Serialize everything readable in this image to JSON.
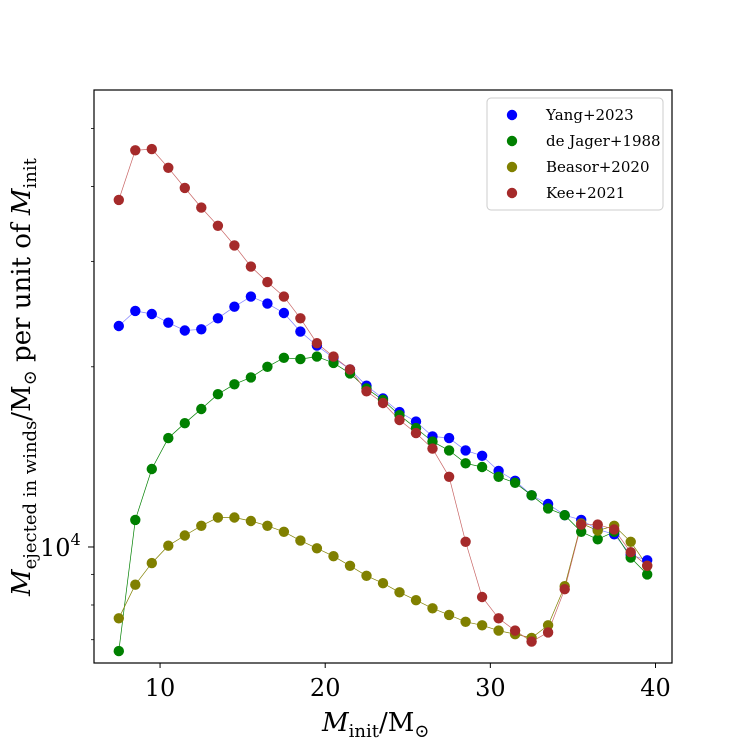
{
  "chart_data": {
    "type": "scatter",
    "title": "",
    "xlabel_main": "M",
    "xlabel_sub": "init",
    "xlabel_unit": "/M",
    "xlabel_unit_sym": "⊙",
    "ylabel_main": "M",
    "ylabel_sub": "ejected in winds",
    "ylabel_mid": "/M",
    "ylabel_sym": "⊙",
    "ylabel_text": " per unit of ",
    "ylabel_end": "M",
    "ylabel_end_sub": "init",
    "yscale": "log",
    "xlim": [
      6,
      41
    ],
    "ylim": [
      6400,
      58000
    ],
    "xticks": [
      10,
      20,
      30,
      40
    ],
    "xtick_labels": [
      "10",
      "20",
      "30",
      "40"
    ],
    "ytick_label_base": "10",
    "ytick_label_exp": "4",
    "ytick_value": 10000,
    "legend_position": "top-right",
    "x": [
      7.5,
      8.5,
      9.5,
      10.5,
      11.5,
      12.5,
      13.5,
      14.5,
      15.5,
      16.5,
      17.5,
      18.5,
      19.5,
      20.5,
      21.5,
      22.5,
      23.5,
      24.5,
      25.5,
      26.5,
      27.5,
      28.5,
      29.5,
      30.5,
      31.5,
      32.5,
      33.5,
      34.5,
      35.5,
      36.5,
      37.5,
      38.5,
      39.5
    ],
    "series": [
      {
        "name": "Yang+2023",
        "color": "#0000ff",
        "line_color": "#8080ff",
        "values": [
          23400,
          24800,
          24500,
          23700,
          23000,
          23100,
          24100,
          25200,
          26200,
          25500,
          24600,
          22900,
          21700,
          20700,
          19800,
          18600,
          17700,
          16800,
          16200,
          15300,
          15200,
          14500,
          14200,
          13400,
          12900,
          12200,
          11800,
          11300,
          11100,
          10700,
          10500,
          9700,
          9500
        ]
      },
      {
        "name": "de Jager+1988",
        "color": "#008000",
        "line_color": "#008000",
        "values": [
          6700,
          11100,
          13500,
          15200,
          16100,
          17000,
          18000,
          18700,
          19200,
          20000,
          20700,
          20600,
          20800,
          20300,
          19500,
          18400,
          17600,
          16600,
          15800,
          15000,
          14500,
          13800,
          13600,
          13100,
          12800,
          12200,
          11600,
          11300,
          10600,
          10300,
          10600,
          9600,
          9000
        ]
      },
      {
        "name": "Beasor+2020",
        "color": "#808000",
        "line_color": "#808000",
        "values": [
          7600,
          8650,
          9400,
          10050,
          10450,
          10850,
          11200,
          11200,
          11050,
          10850,
          10600,
          10250,
          9950,
          9650,
          9300,
          8950,
          8700,
          8400,
          8150,
          7900,
          7700,
          7500,
          7400,
          7250,
          7150,
          7050,
          7400,
          8600,
          10950,
          10650,
          10850,
          10200,
          9300
        ]
      },
      {
        "name": "Kee+2021",
        "color": "#a52a2a",
        "line_color": "#c86464",
        "values": [
          38000,
          46000,
          46200,
          43000,
          39800,
          36900,
          34400,
          31900,
          29400,
          27700,
          26200,
          24100,
          21900,
          20800,
          19800,
          18200,
          17400,
          16300,
          15500,
          14600,
          13100,
          10200,
          8250,
          7600,
          7250,
          6950,
          7200,
          8500,
          10900,
          10900,
          10700,
          9800,
          9300
        ]
      }
    ]
  }
}
